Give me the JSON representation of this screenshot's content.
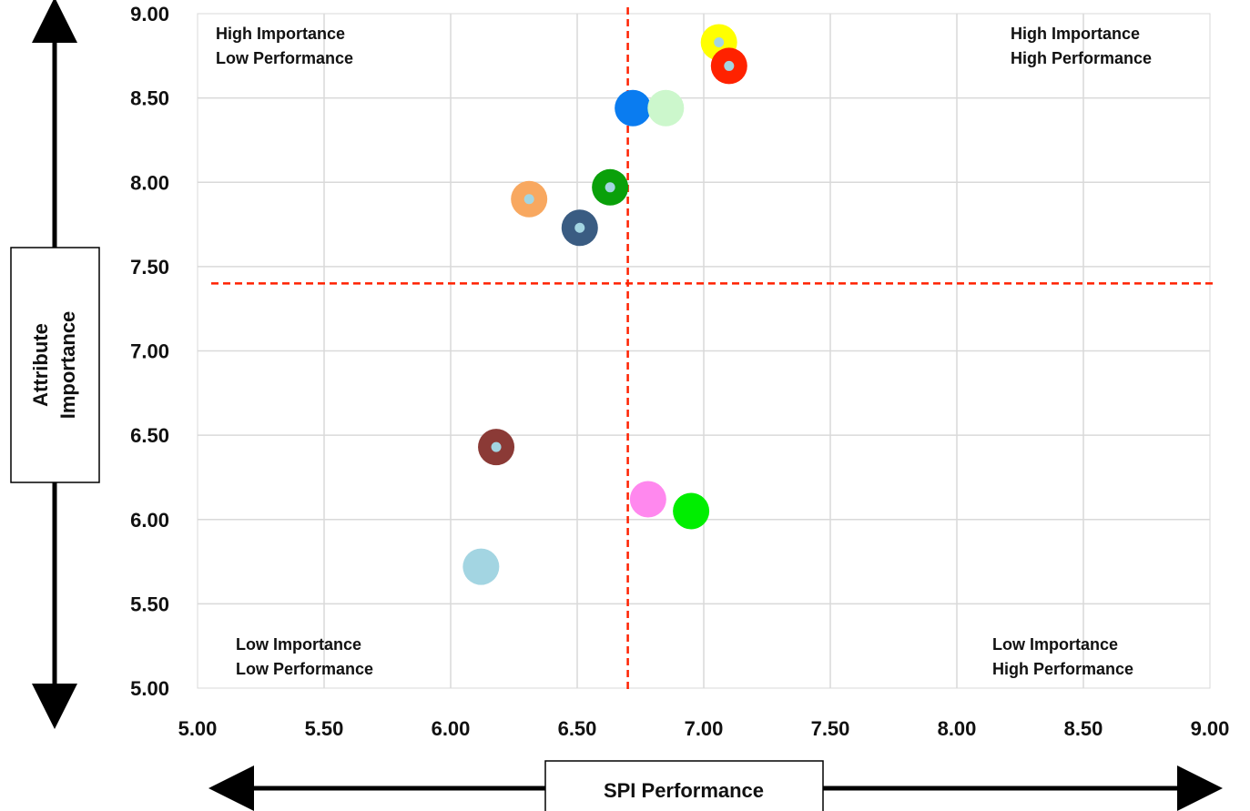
{
  "chart_data": {
    "type": "scatter",
    "title": "",
    "xlabel": "SPI Performance",
    "ylabel_lines": [
      "Attribute",
      "Importance"
    ],
    "xlim": [
      5.0,
      9.0
    ],
    "ylim": [
      5.0,
      9.0
    ],
    "x_ticks": [
      "5.00",
      "5.50",
      "6.00",
      "6.50",
      "7.00",
      "7.50",
      "8.00",
      "8.50",
      "9.00"
    ],
    "y_ticks": [
      "5.00",
      "5.50",
      "6.00",
      "6.50",
      "7.00",
      "7.50",
      "8.00",
      "8.50",
      "9.00"
    ],
    "grid": true,
    "reference_lines": {
      "x": 6.7,
      "y": 7.4,
      "color": "#ff2200",
      "style": "dashed"
    },
    "quadrant_labels": {
      "top_left": [
        "High Importance",
        "Low Performance"
      ],
      "top_right": [
        "High Importance",
        "High Performance"
      ],
      "bottom_left": [
        "Low Importance",
        "Low Performance"
      ],
      "bottom_right": [
        "Low Importance",
        "High Performance"
      ]
    },
    "points": [
      {
        "x": 7.06,
        "y": 8.83,
        "color": "#ffff00",
        "center_dot": true
      },
      {
        "x": 7.1,
        "y": 8.69,
        "color": "#ff2200",
        "center_dot": true
      },
      {
        "x": 6.72,
        "y": 8.44,
        "color": "#0a7cf0",
        "center_dot": false
      },
      {
        "x": 6.85,
        "y": 8.44,
        "color": "#ccf7cc",
        "center_dot": false
      },
      {
        "x": 6.63,
        "y": 7.97,
        "color": "#0aa00a",
        "center_dot": true
      },
      {
        "x": 6.31,
        "y": 7.9,
        "color": "#f8a860",
        "center_dot": true
      },
      {
        "x": 6.51,
        "y": 7.73,
        "color": "#3a5c82",
        "center_dot": true
      },
      {
        "x": 6.18,
        "y": 6.43,
        "color": "#8b3a36",
        "center_dot": true
      },
      {
        "x": 6.78,
        "y": 6.12,
        "color": "#ff88ee",
        "center_dot": false
      },
      {
        "x": 6.95,
        "y": 6.05,
        "color": "#00ee00",
        "center_dot": false
      },
      {
        "x": 6.12,
        "y": 5.72,
        "color": "#a3d5e2",
        "center_dot": false
      }
    ],
    "center_dot_color": "#a3d5e2",
    "grid_color": "#d9d9d9",
    "axis_arrow_color": "#000000"
  }
}
